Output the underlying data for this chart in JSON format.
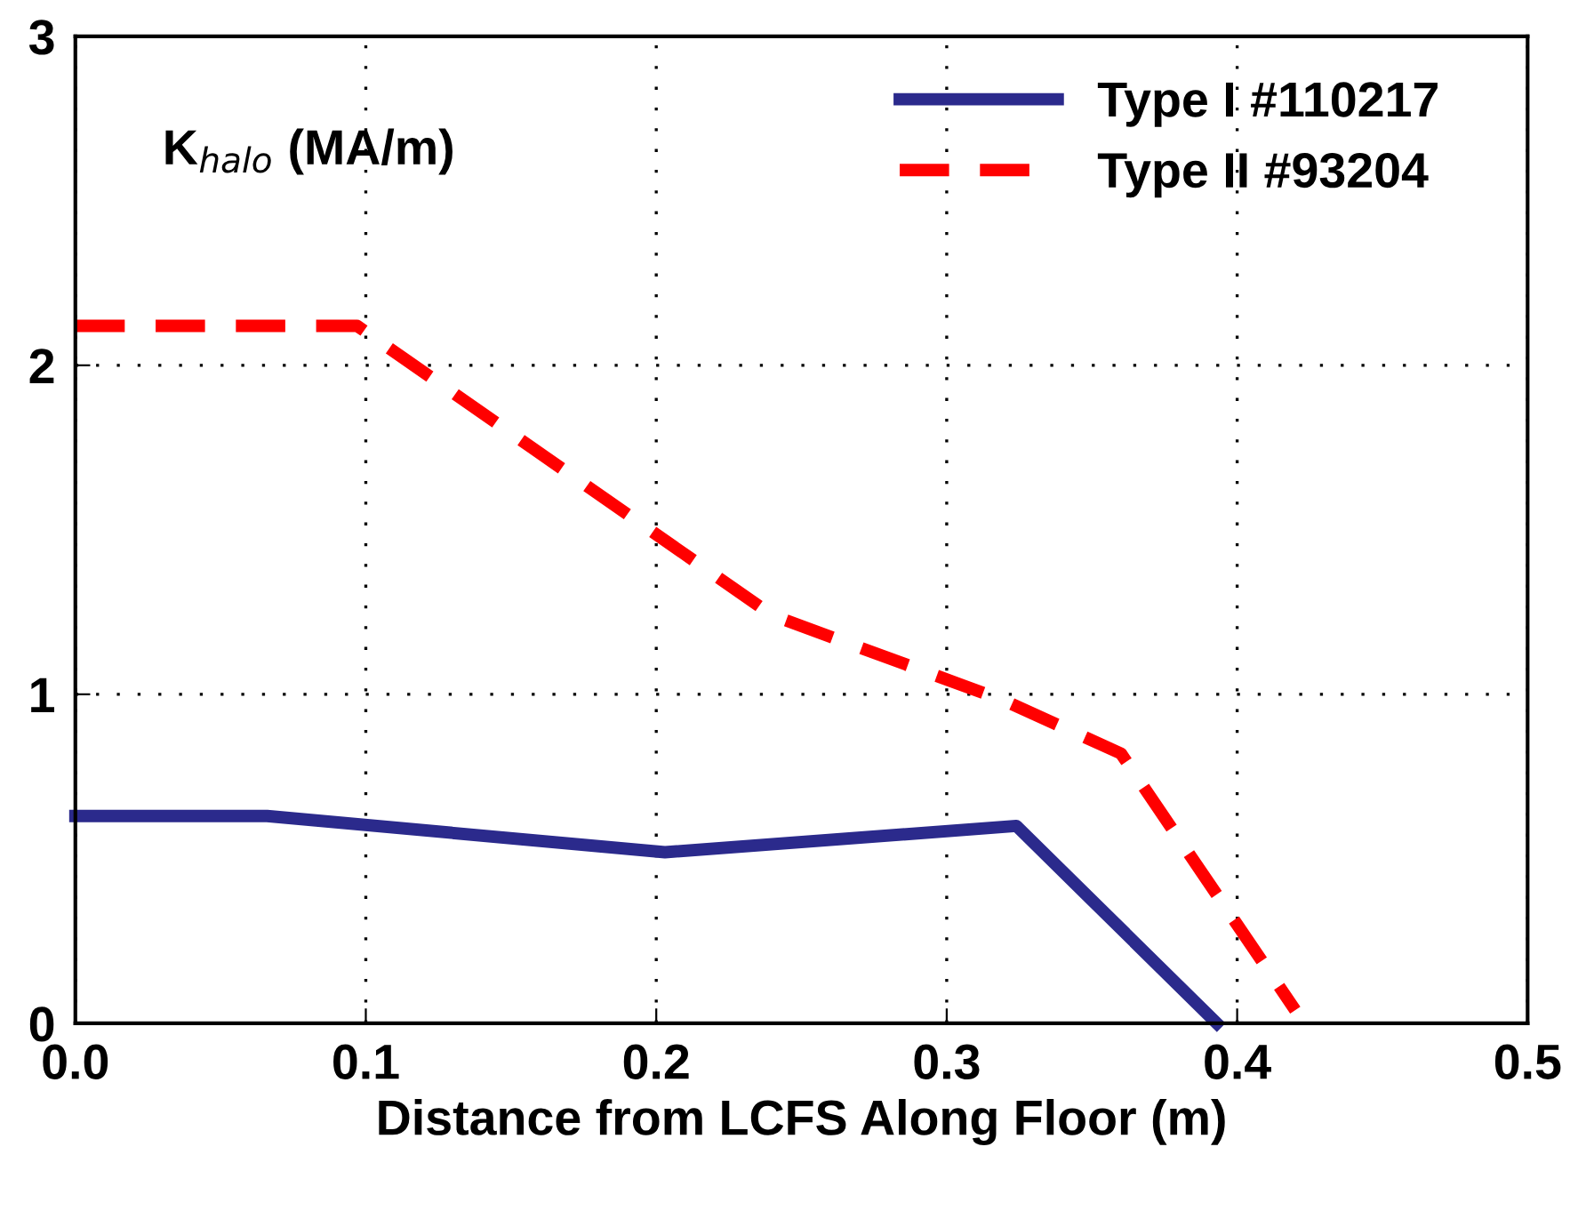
{
  "chart_data": {
    "type": "line",
    "xlabel": "Distance from LCFS Along Floor (m)",
    "ylabel": "K$_{halo}$ (MA/m)",
    "series": [
      {
        "name": "Type I #110217",
        "color": "#2b2a8c",
        "line_style": "solid",
        "x": [
          0,
          0.066,
          0.203,
          0.324,
          0.393
        ],
        "values": [
          0.63,
          0.63,
          0.52,
          0.6,
          0
        ]
      },
      {
        "name": "Type II #93204",
        "color": "#ff0000",
        "line_style": "dashed",
        "x": [
          0,
          0.097,
          0.24,
          0.32,
          0.36,
          0.42
        ],
        "values": [
          2.12,
          2.12,
          1.24,
          0.98,
          0.82,
          0.04
        ]
      }
    ],
    "xlim": [
      0,
      0.5
    ],
    "ylim": [
      0,
      3
    ],
    "xticks": [
      {
        "value": 0,
        "label": "0.0"
      },
      0.1,
      0.2,
      0.3,
      0.4,
      0.5
    ],
    "yticks": [
      0,
      1,
      2,
      3
    ],
    "grid": true,
    "legend": "top right",
    "marker": "none"
  }
}
